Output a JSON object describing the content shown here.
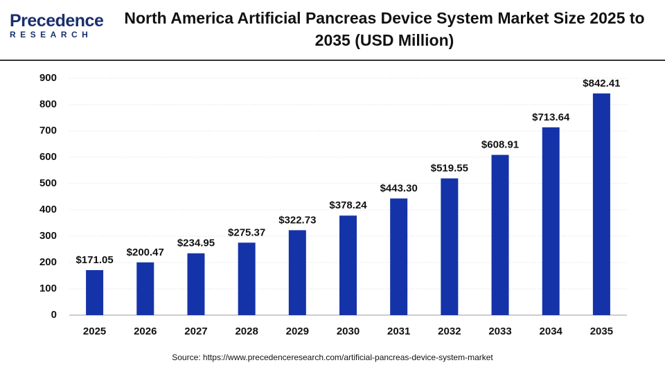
{
  "logo": {
    "name": "Precedence",
    "tagline": "RESEARCH"
  },
  "chart_data": {
    "type": "bar",
    "title": "North America Artificial Pancreas Device System Market Size 2025 to 2035 (USD Million)",
    "categories": [
      "2025",
      "2026",
      "2027",
      "2028",
      "2029",
      "2030",
      "2031",
      "2032",
      "2033",
      "2034",
      "2035"
    ],
    "values": [
      171.05,
      200.47,
      234.95,
      275.37,
      322.73,
      378.24,
      443.3,
      519.55,
      608.91,
      713.64,
      842.41
    ],
    "value_labels": [
      "$171.05",
      "$200.47",
      "$234.95",
      "$275.37",
      "$322.73",
      "$378.24",
      "$443.30",
      "$519.55",
      "$608.91",
      "$713.64",
      "$842.41"
    ],
    "color": "#1533a8",
    "ylim": [
      0,
      900
    ],
    "yticks": [
      0,
      100,
      200,
      300,
      400,
      500,
      600,
      700,
      800,
      900
    ],
    "grid": true,
    "source": "Source: https://www.precedenceresearch.com/artificial-pancreas-device-system-market"
  }
}
